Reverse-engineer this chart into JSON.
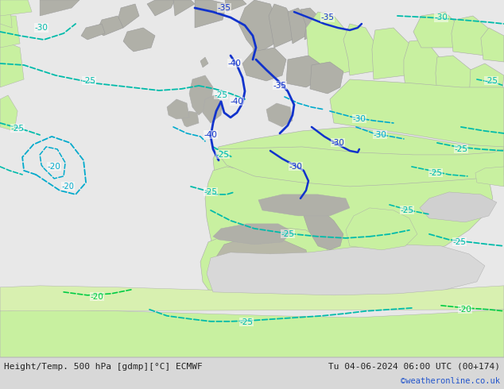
{
  "title_left": "Height/Temp. 500 hPa [gdmp][°C] ECMWF",
  "title_right": "Tu 04-06-2024 06:00 UTC (00+174)",
  "watermark": "©weatheronline.co.uk",
  "ocean_color": "#e8e8e8",
  "land_color": "#c8f0a0",
  "border_color": "#aaaaaa",
  "mountain_color": "#b0b0a8",
  "footer_bg": "#e0e0e0",
  "watermark_color": "#2255cc",
  "cyan_color": "#00bbaa",
  "cyan2_color": "#00aacc",
  "blue_color": "#1133cc",
  "green_line_color": "#00cc44",
  "figsize": [
    6.34,
    4.9
  ],
  "dpi": 100
}
